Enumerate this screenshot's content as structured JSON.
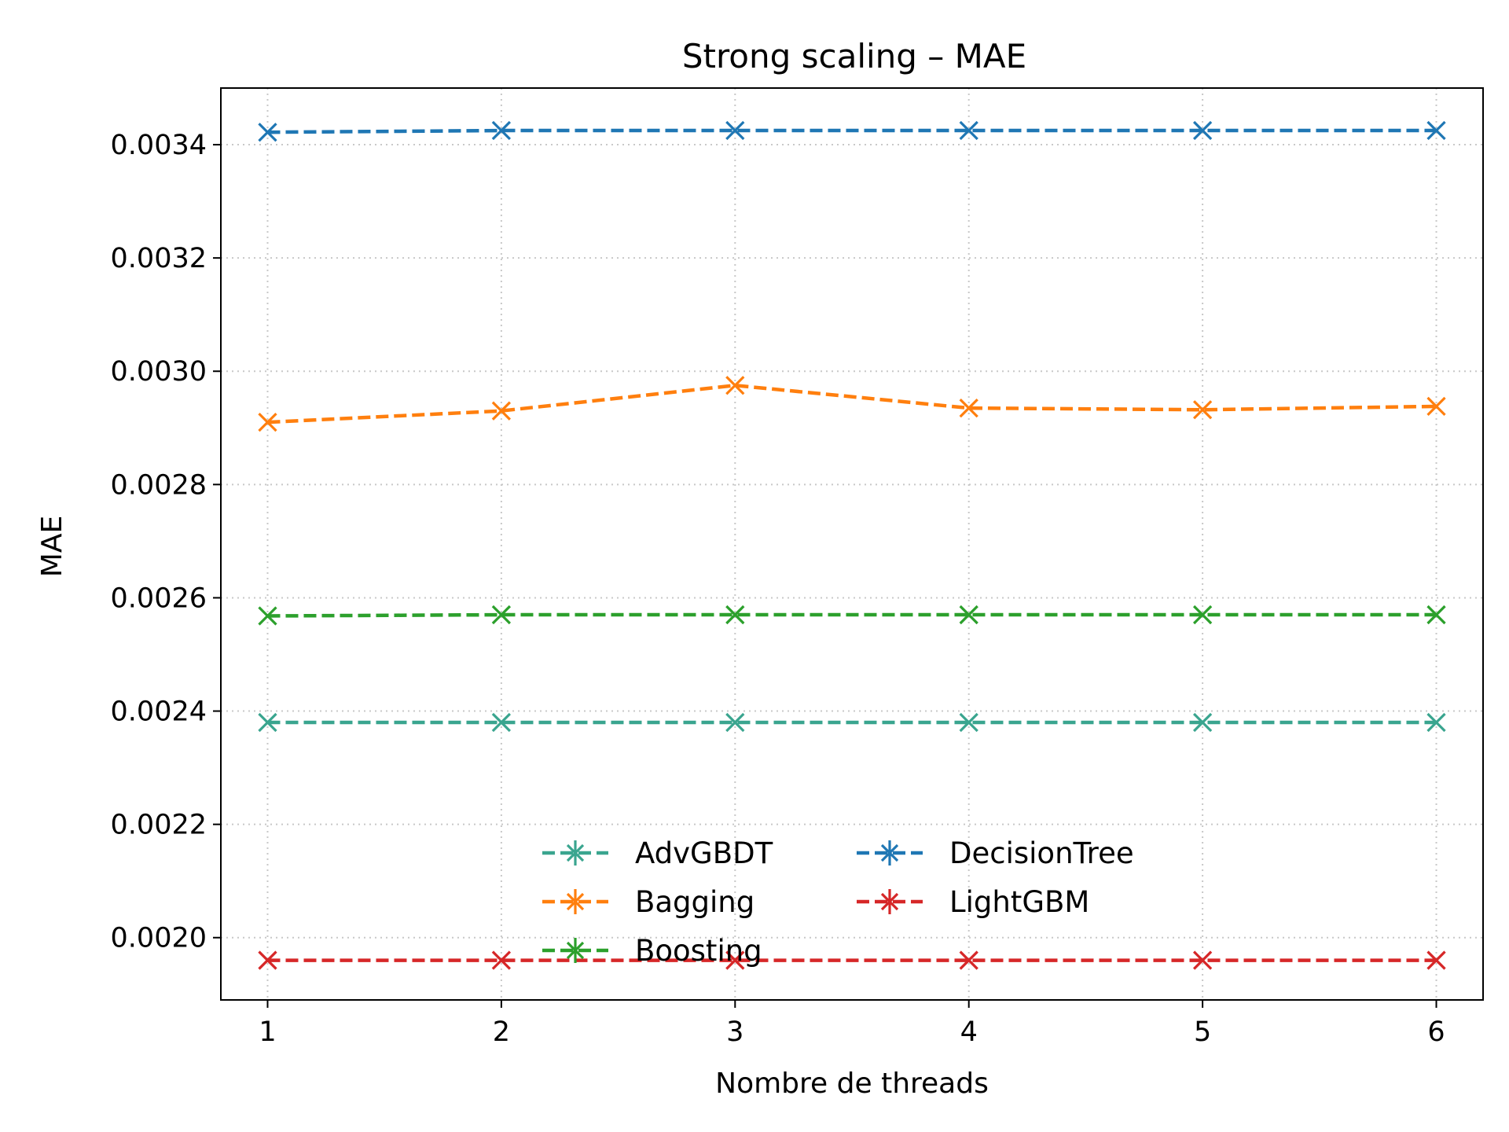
{
  "chart_data": {
    "type": "line",
    "title": "Strong scaling – MAE",
    "xlabel": "Nombre de threads",
    "ylabel": "MAE",
    "x": [
      1,
      2,
      3,
      4,
      5,
      6
    ],
    "x_ticks": [
      "1",
      "2",
      "3",
      "4",
      "5",
      "6"
    ],
    "y_ticks": [
      "0.0020",
      "0.0022",
      "0.0024",
      "0.0026",
      "0.0028",
      "0.0030",
      "0.0032",
      "0.0034"
    ],
    "y_tick_values": [
      0.002,
      0.0022,
      0.0024,
      0.0026,
      0.0028,
      0.003,
      0.0032,
      0.0034
    ],
    "xlim": [
      0.8,
      6.2
    ],
    "ylim": [
      0.00189,
      0.0035
    ],
    "grid": true,
    "legend_position": "lower-center",
    "series": [
      {
        "name": "AdvGBDT",
        "color": "#3aa58f",
        "values": [
          0.00238,
          0.00238,
          0.00238,
          0.00238,
          0.00238,
          0.00238
        ]
      },
      {
        "name": "Bagging",
        "color": "#ff7f0e",
        "values": [
          0.00291,
          0.00293,
          0.002975,
          0.002935,
          0.002932,
          0.002938
        ]
      },
      {
        "name": "Boosting",
        "color": "#2ca02c",
        "values": [
          0.002568,
          0.00257,
          0.00257,
          0.00257,
          0.00257,
          0.00257
        ]
      },
      {
        "name": "DecisionTree",
        "color": "#1f77b4",
        "values": [
          0.003422,
          0.003425,
          0.003425,
          0.003425,
          0.003425,
          0.003425
        ]
      },
      {
        "name": "LightGBM",
        "color": "#d62728",
        "values": [
          0.00196,
          0.00196,
          0.00196,
          0.00196,
          0.00196,
          0.00196
        ]
      }
    ]
  }
}
